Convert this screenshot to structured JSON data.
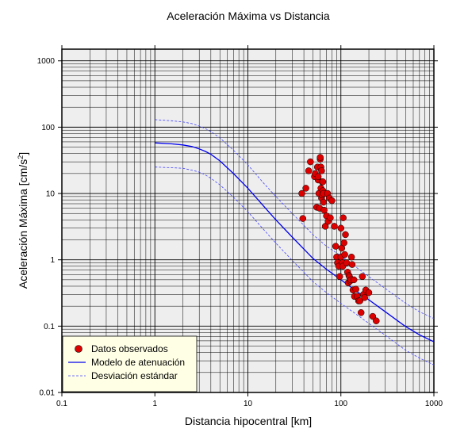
{
  "chart_data": {
    "type": "scatter",
    "title": "Aceleración Máxima vs Distancia",
    "xlabel": "Distancia hipocentral [km]",
    "ylabel_main": "Aceleración Máxima [cm/s",
    "ylabel_sup": "2",
    "ylabel_close": "]",
    "x_scale": "log",
    "y_scale": "log",
    "xlim": [
      0.1,
      1000
    ],
    "ylim": [
      0.01,
      1500
    ],
    "x_ticks": [
      0.1,
      1,
      10,
      100,
      1000
    ],
    "x_tick_labels": [
      "0.1",
      "1",
      "10",
      "100",
      "1000"
    ],
    "y_ticks": [
      0.01,
      0.1,
      1,
      10,
      100,
      1000
    ],
    "y_tick_labels": [
      "0.01",
      "0.1",
      "1",
      "10",
      "100",
      "1000"
    ],
    "grid": true,
    "legend_position": "bottom-left",
    "legend": [
      {
        "label": "Datos observados",
        "style": "marker"
      },
      {
        "label": "Modelo de atenuación",
        "style": "solid"
      },
      {
        "label": "Desviación estándar",
        "style": "dashed"
      }
    ],
    "colors": {
      "observed": "#dd0000",
      "model": "#0000ee",
      "deviation": "#4444ff",
      "plot_background": "#eeeeee",
      "legend_background": "#ffffe6"
    },
    "series": [
      {
        "name": "Datos observados",
        "type": "scatter",
        "x": [
          38,
          39,
          42,
          45,
          47,
          52,
          53,
          55,
          56,
          57,
          57,
          58,
          59,
          60,
          60,
          61,
          61,
          62,
          62,
          63,
          63,
          64,
          64,
          65,
          65,
          66,
          68,
          70,
          72,
          73,
          75,
          77,
          80,
          85,
          88,
          90,
          92,
          95,
          97,
          100,
          100,
          102,
          104,
          105,
          106,
          108,
          110,
          112,
          115,
          118,
          120,
          122,
          124,
          126,
          128,
          130,
          132,
          135,
          138,
          140,
          145,
          150,
          155,
          160,
          165,
          170,
          175,
          180,
          185,
          200,
          220,
          240
        ],
        "y": [
          10,
          4.2,
          12,
          22,
          30,
          18,
          20,
          6.2,
          25,
          16,
          18,
          10,
          6,
          33,
          35,
          12,
          25,
          8.5,
          22,
          9.5,
          15,
          11,
          15,
          7.4,
          10,
          5.6,
          3.2,
          4.6,
          10,
          3.8,
          8.5,
          4.3,
          7.8,
          3.2,
          1.6,
          1.1,
          0.9,
          0.8,
          0.56,
          3,
          1.1,
          1.5,
          0.9,
          0.8,
          4.3,
          1.8,
          1.2,
          2.4,
          0.9,
          0.65,
          0.45,
          0.58,
          0.55,
          0.48,
          0.5,
          1.1,
          0.85,
          0.35,
          0.5,
          0.28,
          0.36,
          0.28,
          0.24,
          0.24,
          0.16,
          0.56,
          0.3,
          0.27,
          0.35,
          0.32,
          0.14,
          0.12
        ]
      },
      {
        "name": "Modelo de atenuación",
        "type": "line",
        "x": [
          1,
          1.5,
          2,
          2.5,
          3,
          3.5,
          4,
          5,
          7,
          10,
          15,
          20,
          30,
          50,
          70,
          100,
          150,
          200,
          300,
          500,
          700,
          1000
        ],
        "y": [
          58,
          56,
          54,
          51,
          47,
          43,
          39,
          31,
          20,
          12,
          6.3,
          4.0,
          2.2,
          1.05,
          0.72,
          0.5,
          0.33,
          0.25,
          0.165,
          0.098,
          0.074,
          0.058
        ]
      },
      {
        "name": "Desviación estándar (superior)",
        "type": "line",
        "x": [
          1,
          1.5,
          2,
          2.5,
          3,
          3.5,
          4,
          5,
          7,
          10,
          15,
          20,
          30,
          50,
          70,
          100,
          150,
          200,
          300,
          500,
          700,
          1000
        ],
        "y": [
          130,
          125,
          120,
          113,
          104,
          95,
          86,
          69,
          45,
          27,
          14,
          9,
          5,
          2.4,
          1.6,
          1.15,
          0.75,
          0.56,
          0.37,
          0.22,
          0.165,
          0.13
        ]
      },
      {
        "name": "Desviación estándar (inferior)",
        "type": "line",
        "x": [
          1,
          1.5,
          2,
          2.5,
          3,
          3.5,
          4,
          5,
          7,
          10,
          15,
          20,
          30,
          50,
          70,
          100,
          150,
          200,
          300,
          500,
          700,
          1000
        ],
        "y": [
          25,
          24.5,
          24,
          22.5,
          21,
          19,
          17,
          13.5,
          8.8,
          5.3,
          2.8,
          1.78,
          0.98,
          0.47,
          0.32,
          0.22,
          0.147,
          0.11,
          0.073,
          0.043,
          0.033,
          0.026
        ]
      }
    ]
  }
}
